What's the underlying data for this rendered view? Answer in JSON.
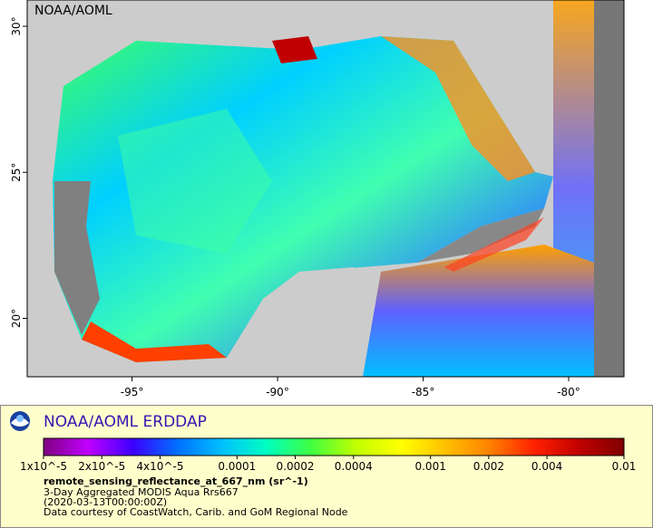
{
  "map": {
    "corner_label": "NOAA/AOML",
    "xlim": [
      -98.6,
      -78.1
    ],
    "ylim": [
      18,
      30.9
    ],
    "xticks": [
      {
        "value": -95,
        "label": "-95°"
      },
      {
        "value": -90,
        "label": "-90°"
      },
      {
        "value": -85,
        "label": "-85°"
      },
      {
        "value": -80,
        "label": "-80°"
      }
    ],
    "yticks": [
      {
        "value": 20,
        "label": "20°"
      },
      {
        "value": 25,
        "label": "25°"
      },
      {
        "value": 30,
        "label": "30°"
      }
    ]
  },
  "legend": {
    "brand": "NOAA/AOML ERDDAP",
    "scale": "log",
    "range": [
      1e-05,
      0.01
    ],
    "colormap": [
      "#7f007f",
      "#c000ff",
      "#3c00ff",
      "#0070ff",
      "#00c0ff",
      "#00ffc0",
      "#40ff40",
      "#c0ff00",
      "#ffff00",
      "#ffc000",
      "#ff8000",
      "#ff2000",
      "#c00000",
      "#800000"
    ],
    "ticks": [
      {
        "value": 1e-05,
        "label": "1x10^-5"
      },
      {
        "value": 2e-05,
        "label": "2x10^-5"
      },
      {
        "value": 4e-05,
        "label": "4x10^-5"
      },
      0.0001,
      0.0002,
      0.0004,
      0.001,
      0.002,
      0.004,
      0.01
    ]
  },
  "caption": {
    "variable": "remote_sensing_reflectance_at_667_nm (sr^-1)",
    "dataset": "3-Day Aggregated MODIS Aqua Rrs667",
    "time": "(2020-03-13T00:00:00Z)",
    "credit": "Data courtesy of CoastWatch, Carib. and GoM Regional Node"
  }
}
